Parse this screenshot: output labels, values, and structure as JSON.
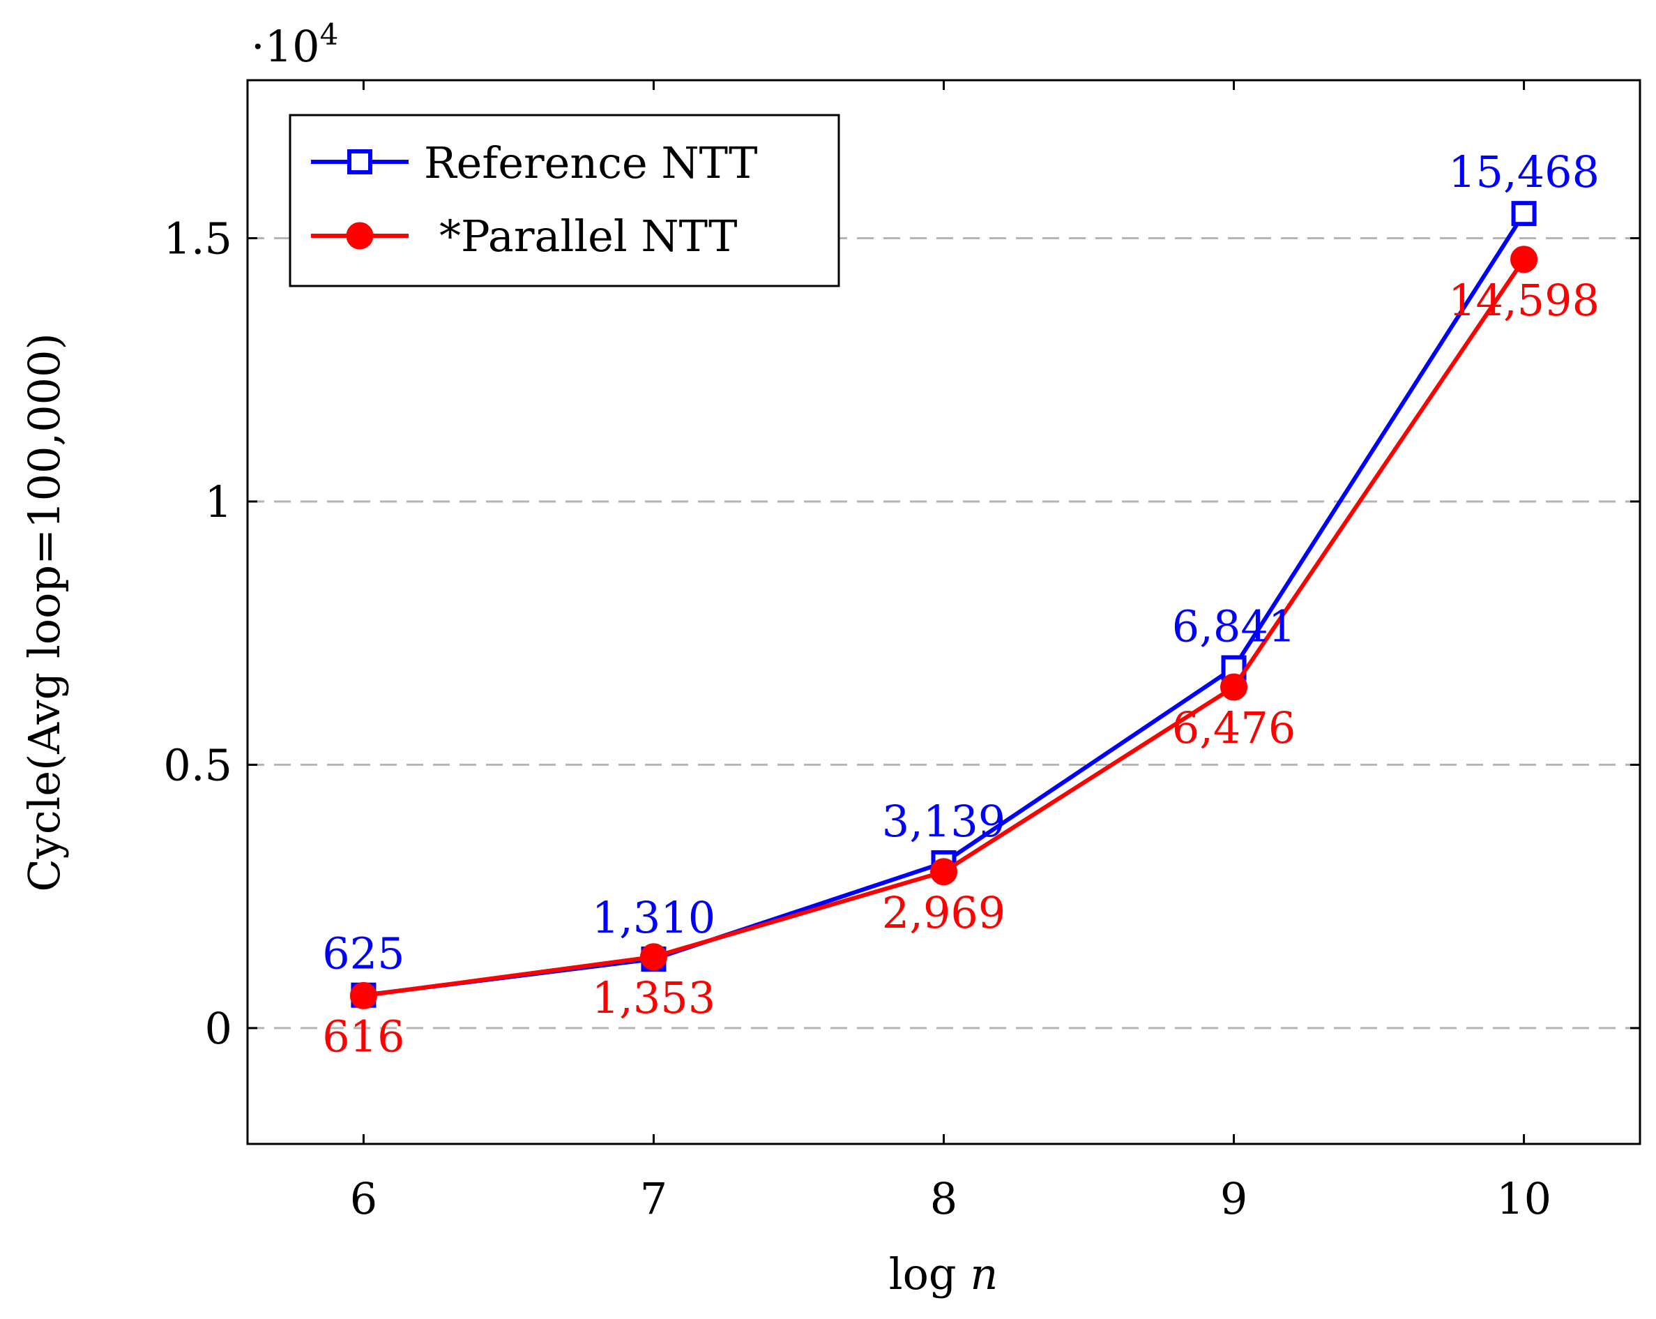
{
  "chart_data": {
    "type": "line",
    "title": "",
    "xlabel_prefix": "log",
    "xlabel_var": "n",
    "ylabel": "Cycle(Avg loop=100,000)",
    "y_scale_base": "·10",
    "y_scale_exp": "4",
    "y_scale_factor": 10000,
    "x": [
      6,
      7,
      8,
      9,
      10
    ],
    "xlim": [
      5.6,
      10.4
    ],
    "ylim": [
      -2200,
      18000
    ],
    "x_ticks": [
      6,
      7,
      8,
      9,
      10
    ],
    "x_tick_labels": [
      "6",
      "7",
      "8",
      "9",
      "10"
    ],
    "y_ticks": [
      0,
      5000,
      10000,
      15000
    ],
    "y_tick_labels": [
      "0",
      "0.5",
      "1",
      "1.5"
    ],
    "grid": "horizontal dashed",
    "legend_position": "top-left",
    "series": [
      {
        "name": "Reference NTT",
        "color": "#0000ff",
        "marker": "open-square",
        "label_position": "above",
        "values": [
          625,
          1310,
          3139,
          6841,
          15468
        ],
        "value_labels": [
          "625",
          "1,310",
          "3,139",
          "6,841",
          "15,468"
        ]
      },
      {
        "name": "*Parallel NTT",
        "color": "#ff0000",
        "marker": "filled-circle",
        "label_position": "below",
        "values": [
          616,
          1353,
          2969,
          6476,
          14598
        ],
        "value_labels": [
          "616",
          "1,353",
          "2,969",
          "6,476",
          "14,598"
        ]
      }
    ]
  }
}
